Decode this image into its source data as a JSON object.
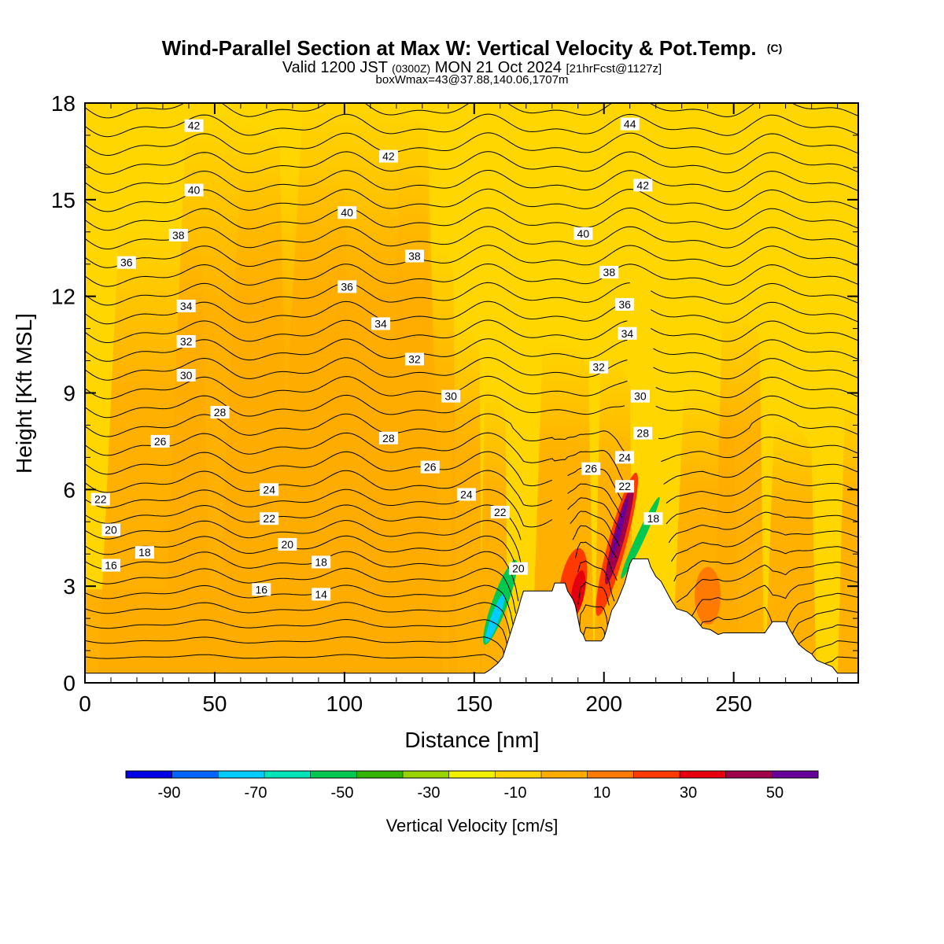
{
  "header": {
    "title": "Wind-Parallel Section at Max W: Vertical Velocity & Pot.Temp.",
    "title_mark": "(C)",
    "subtitle": {
      "valid": "Valid 1200 JST",
      "zulu": "(0300Z)",
      "date": "MON 21 Oct 2024",
      "forecast": "[21hrFcst@1127z]"
    },
    "boxline": "boxWmax=43@37.88,140.06,1707m"
  },
  "chart_data": {
    "type": "heatmap",
    "xlabel": "Distance [nm]",
    "ylabel": "Height [Kft MSL]",
    "xlim": [
      0,
      298
    ],
    "ylim": [
      0,
      18
    ],
    "x_ticks": [
      0,
      50,
      100,
      150,
      200,
      250
    ],
    "y_ticks": [
      0,
      3,
      6,
      9,
      12,
      15,
      18
    ],
    "terrain": [
      [
        0,
        0.3
      ],
      [
        154,
        0.3
      ],
      [
        156,
        0.4
      ],
      [
        159,
        0.6
      ],
      [
        161,
        0.8
      ],
      [
        163,
        1.3
      ],
      [
        165,
        1.8
      ],
      [
        167,
        2.3
      ],
      [
        168,
        2.6
      ],
      [
        169,
        2.85
      ],
      [
        180,
        2.85
      ],
      [
        181,
        3.1
      ],
      [
        185,
        3.1
      ],
      [
        186,
        2.85
      ],
      [
        188,
        2.6
      ],
      [
        189,
        2.4
      ],
      [
        190,
        2.0
      ],
      [
        191,
        1.6
      ],
      [
        192,
        1.5
      ],
      [
        193,
        1.3
      ],
      [
        199,
        1.3
      ],
      [
        200,
        1.4
      ],
      [
        201,
        1.65
      ],
      [
        202,
        1.95
      ],
      [
        203,
        2.25
      ],
      [
        205,
        2.5
      ],
      [
        206,
        2.7
      ],
      [
        207,
        2.9
      ],
      [
        208,
        3.1
      ],
      [
        209,
        3.4
      ],
      [
        210,
        3.7
      ],
      [
        211,
        3.85
      ],
      [
        217,
        3.85
      ],
      [
        218,
        3.6
      ],
      [
        220,
        3.3
      ],
      [
        222,
        3.15
      ],
      [
        224,
        2.85
      ],
      [
        226,
        2.55
      ],
      [
        228,
        2.3
      ],
      [
        232,
        2.2
      ],
      [
        235,
        2.0
      ],
      [
        238,
        1.7
      ],
      [
        241,
        1.65
      ],
      [
        244,
        1.5
      ],
      [
        246,
        1.55
      ],
      [
        262,
        1.55
      ],
      [
        265,
        1.9
      ],
      [
        270,
        1.9
      ],
      [
        272,
        1.6
      ],
      [
        275,
        1.2
      ],
      [
        278,
        1.0
      ],
      [
        280,
        0.9
      ],
      [
        282,
        0.7
      ],
      [
        285,
        0.6
      ],
      [
        288,
        0.5
      ],
      [
        290,
        0.3
      ],
      [
        298,
        0.3
      ]
    ],
    "contour_interval": 1,
    "contour_labels": [
      {
        "text": "42",
        "x": 42,
        "y": 17.3
      },
      {
        "text": "44",
        "x": 210,
        "y": 17.35
      },
      {
        "text": "42",
        "x": 117,
        "y": 16.35
      },
      {
        "text": "40",
        "x": 42,
        "y": 15.3
      },
      {
        "text": "42",
        "x": 215,
        "y": 15.45
      },
      {
        "text": "40",
        "x": 101,
        "y": 14.6
      },
      {
        "text": "38",
        "x": 36,
        "y": 13.9
      },
      {
        "text": "40",
        "x": 192,
        "y": 13.95
      },
      {
        "text": "38",
        "x": 127,
        "y": 13.25
      },
      {
        "text": "36",
        "x": 16,
        "y": 13.05
      },
      {
        "text": "38",
        "x": 202,
        "y": 12.75
      },
      {
        "text": "36",
        "x": 101,
        "y": 12.3
      },
      {
        "text": "34",
        "x": 39,
        "y": 11.7
      },
      {
        "text": "36",
        "x": 208,
        "y": 11.75
      },
      {
        "text": "34",
        "x": 114,
        "y": 11.15
      },
      {
        "text": "34",
        "x": 209,
        "y": 10.85
      },
      {
        "text": "32",
        "x": 39,
        "y": 10.6
      },
      {
        "text": "32",
        "x": 127,
        "y": 10.05
      },
      {
        "text": "32",
        "x": 198,
        "y": 9.8
      },
      {
        "text": "30",
        "x": 39,
        "y": 9.55
      },
      {
        "text": "30",
        "x": 141,
        "y": 8.9
      },
      {
        "text": "30",
        "x": 214,
        "y": 8.9
      },
      {
        "text": "28",
        "x": 52,
        "y": 8.4
      },
      {
        "text": "28",
        "x": 215,
        "y": 7.75
      },
      {
        "text": "26",
        "x": 29,
        "y": 7.5
      },
      {
        "text": "28",
        "x": 117,
        "y": 7.6
      },
      {
        "text": "24",
        "x": 208,
        "y": 7.0
      },
      {
        "text": "26",
        "x": 133,
        "y": 6.7
      },
      {
        "text": "26",
        "x": 195,
        "y": 6.65
      },
      {
        "text": "24",
        "x": 71,
        "y": 6.0
      },
      {
        "text": "22",
        "x": 208,
        "y": 6.1
      },
      {
        "text": "24",
        "x": 147,
        "y": 5.85
      },
      {
        "text": "22",
        "x": 6,
        "y": 5.7
      },
      {
        "text": "22",
        "x": 160,
        "y": 5.3
      },
      {
        "text": "22",
        "x": 71,
        "y": 5.1
      },
      {
        "text": "18",
        "x": 219,
        "y": 5.1
      },
      {
        "text": "20",
        "x": 10,
        "y": 4.75
      },
      {
        "text": "20",
        "x": 78,
        "y": 4.3
      },
      {
        "text": "18",
        "x": 23,
        "y": 4.05
      },
      {
        "text": "18",
        "x": 91,
        "y": 3.75
      },
      {
        "text": "20",
        "x": 167,
        "y": 3.55
      },
      {
        "text": "16",
        "x": 10,
        "y": 3.65
      },
      {
        "text": "16",
        "x": 68,
        "y": 2.9
      },
      {
        "text": "14",
        "x": 91,
        "y": 2.75
      }
    ],
    "colorbar": {
      "label": "Vertical Velocity [cm/s]",
      "range": [
        -100,
        60
      ],
      "step": 10,
      "tick_labels": [
        "-90",
        "-70",
        "-50",
        "-30",
        "-10",
        "10",
        "30",
        "50"
      ],
      "colors": [
        "#0000e6",
        "#0066ff",
        "#00ccff",
        "#00e5b8",
        "#00c850",
        "#33b400",
        "#99d400",
        "#f0f000",
        "#ffd600",
        "#ffac00",
        "#ff7a00",
        "#ff3a00",
        "#e6000f",
        "#a0004a",
        "#660099"
      ]
    }
  }
}
